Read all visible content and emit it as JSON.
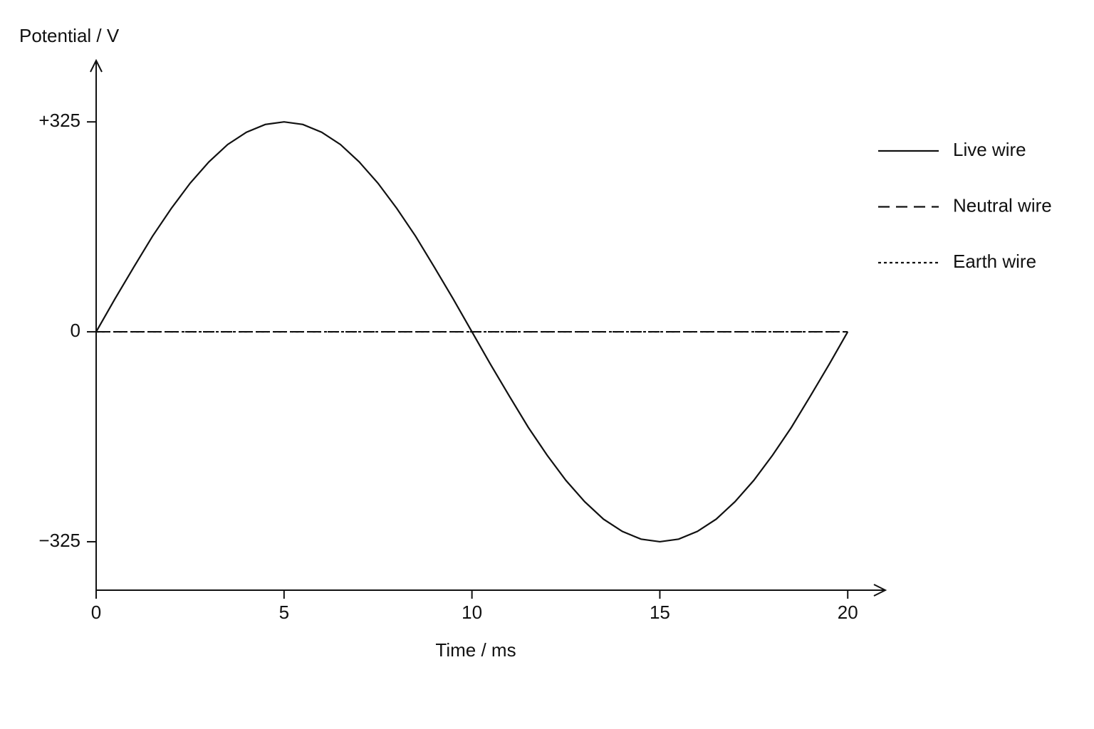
{
  "chart_data": {
    "type": "line",
    "y_label": "Potential / V",
    "x_label": "Time / ms",
    "x": [
      0,
      0.5,
      1,
      1.5,
      2,
      2.5,
      3,
      3.5,
      4,
      4.5,
      5,
      5.5,
      6,
      6.5,
      7,
      7.5,
      8,
      8.5,
      9,
      9.5,
      10,
      10.5,
      11,
      11.5,
      12,
      12.5,
      13,
      13.5,
      14,
      14.5,
      15,
      15.5,
      16,
      16.5,
      17,
      17.5,
      18,
      18.5,
      19,
      19.5,
      20
    ],
    "series": [
      {
        "name": "Live wire",
        "color": "#111111",
        "style": "solid",
        "values": [
          0,
          51,
          100,
          148,
          191,
          230,
          263,
          290,
          309,
          321,
          325,
          321,
          309,
          290,
          263,
          230,
          191,
          148,
          100,
          51,
          0,
          -51,
          -100,
          -148,
          -191,
          -230,
          -263,
          -290,
          -309,
          -321,
          -325,
          -321,
          -309,
          -290,
          -263,
          -230,
          -191,
          -148,
          -100,
          -51,
          0
        ]
      },
      {
        "name": "Neutral wire",
        "color": "#111111",
        "style": "dashed",
        "values": [
          0,
          0,
          0,
          0,
          0,
          0,
          0,
          0,
          0,
          0,
          0,
          0,
          0,
          0,
          0,
          0,
          0,
          0,
          0,
          0,
          0,
          0,
          0,
          0,
          0,
          0,
          0,
          0,
          0,
          0,
          0,
          0,
          0,
          0,
          0,
          0,
          0,
          0,
          0,
          0,
          0
        ]
      },
      {
        "name": "Earth wire",
        "color": "#111111",
        "style": "dotted",
        "values": [
          0,
          0,
          0,
          0,
          0,
          0,
          0,
          0,
          0,
          0,
          0,
          0,
          0,
          0,
          0,
          0,
          0,
          0,
          0,
          0,
          0,
          0,
          0,
          0,
          0,
          0,
          0,
          0,
          0,
          0,
          0,
          0,
          0,
          0,
          0,
          0,
          0,
          0,
          0,
          0,
          0
        ]
      }
    ],
    "xlim": [
      0,
      21
    ],
    "xticks": [
      0,
      5,
      10,
      15,
      20
    ],
    "ylim": [
      -400,
      420
    ],
    "yticks": [
      {
        "value": -325,
        "label": "−325"
      },
      0,
      {
        "value": 325,
        "label": "+325"
      }
    ],
    "grid": false,
    "legend": "right"
  }
}
